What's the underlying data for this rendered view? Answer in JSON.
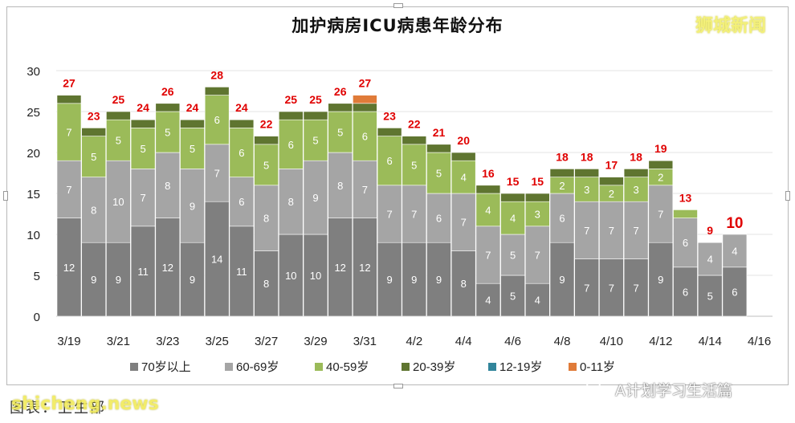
{
  "chart_data": {
    "type": "bar",
    "stacked": true,
    "title": "加护病房ICU病患年龄分布",
    "categories": [
      "3/19",
      "3/20",
      "3/21",
      "3/22",
      "3/23",
      "3/24",
      "3/25",
      "3/26",
      "3/27",
      "3/28",
      "3/29",
      "3/30",
      "3/31",
      "4/1",
      "4/2",
      "4/3",
      "4/4",
      "4/5",
      "4/6",
      "4/7",
      "4/8",
      "4/9",
      "4/10",
      "4/11",
      "4/12",
      "4/13",
      "4/14",
      "4/15",
      "4/16"
    ],
    "x_tick_labels": [
      "3/19",
      "3/21",
      "3/23",
      "3/25",
      "3/27",
      "3/29",
      "3/31",
      "4/2",
      "4/4",
      "4/6",
      "4/8",
      "4/10",
      "4/12",
      "4/14",
      "4/16"
    ],
    "ylim": [
      0,
      30
    ],
    "y_ticks": [
      "0",
      "5",
      "10",
      "15",
      "20",
      "25",
      "30"
    ],
    "grid": true,
    "legend_position": "bottom",
    "series": [
      {
        "name": "70岁以上",
        "color": "#7f7f7f",
        "values": [
          12,
          9,
          9,
          11,
          12,
          9,
          14,
          11,
          8,
          10,
          10,
          12,
          12,
          9,
          9,
          9,
          8,
          4,
          5,
          4,
          9,
          7,
          7,
          7,
          9,
          6,
          5,
          6,
          null
        ]
      },
      {
        "name": "60-69岁",
        "color": "#a5a5a5",
        "values": [
          7,
          8,
          10,
          7,
          8,
          9,
          7,
          6,
          8,
          8,
          9,
          8,
          7,
          7,
          7,
          6,
          7,
          7,
          5,
          7,
          6,
          7,
          7,
          7,
          7,
          6,
          4,
          4,
          null
        ]
      },
      {
        "name": "40-59岁",
        "color": "#9bbb59",
        "values": [
          7,
          5,
          5,
          5,
          5,
          5,
          6,
          6,
          5,
          6,
          5,
          5,
          6,
          6,
          5,
          5,
          4,
          4,
          4,
          3,
          2,
          3,
          2,
          3,
          2,
          1,
          0,
          0,
          null
        ]
      },
      {
        "name": "20-39岁",
        "color": "#5f7530",
        "values": [
          1,
          1,
          1,
          1,
          1,
          1,
          1,
          1,
          1,
          1,
          1,
          1,
          1,
          1,
          1,
          1,
          1,
          1,
          1,
          1,
          1,
          1,
          1,
          1,
          1,
          0,
          0,
          0,
          null
        ]
      },
      {
        "name": "12-19岁",
        "color": "#31859b",
        "values": [
          0,
          0,
          0,
          0,
          0,
          0,
          0,
          0,
          0,
          0,
          0,
          0,
          0,
          0,
          0,
          0,
          0,
          0,
          0,
          0,
          0,
          0,
          0,
          0,
          0,
          0,
          0,
          0,
          null
        ]
      },
      {
        "name": "0-11岁",
        "color": "#e07b39",
        "values": [
          0,
          0,
          0,
          0,
          0,
          0,
          0,
          0,
          0,
          0,
          0,
          0,
          1,
          0,
          0,
          0,
          0,
          0,
          0,
          0,
          0,
          0,
          0,
          0,
          0,
          0,
          0,
          0,
          null
        ]
      }
    ],
    "totals": [
      27,
      23,
      25,
      24,
      26,
      24,
      28,
      24,
      22,
      25,
      25,
      26,
      27,
      23,
      22,
      21,
      20,
      16,
      15,
      15,
      18,
      18,
      17,
      18,
      19,
      13,
      9,
      10,
      null
    ],
    "total_label_color": "#e00000"
  },
  "watermark": "狮城新闻",
  "caption": "图表：卫生部",
  "caption_overlay": "shicheng.news",
  "account_name": "A计划学习生活篇"
}
